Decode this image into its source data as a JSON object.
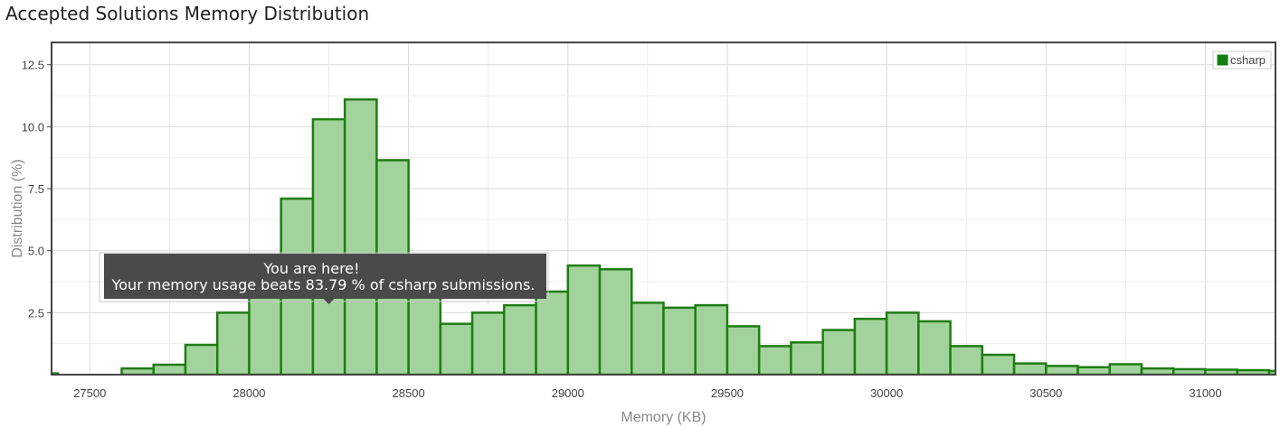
{
  "header": {
    "title": "Accepted Solutions Memory Distribution"
  },
  "colors": {
    "bar_fill": "#a3d39c",
    "bar_stroke": "#1e7d12",
    "legend_swatch": "#137d13",
    "tooltip_bg": "#4a4a4a"
  },
  "chart_data": {
    "type": "bar",
    "title": "Accepted Solutions Memory Distribution",
    "xlabel": "Memory (KB)",
    "ylabel": "Distribution (%)",
    "xlim": [
      27380,
      31220
    ],
    "ylim": [
      0,
      13.4
    ],
    "grid": true,
    "legend_position": "top-right",
    "x_ticks": [
      "27500",
      "28000",
      "28500",
      "29000",
      "29500",
      "30000",
      "30500",
      "31000"
    ],
    "y_ticks": [
      "2.5",
      "5.0",
      "7.5",
      "10.0",
      "12.5"
    ],
    "bin_width": 100,
    "series": [
      {
        "name": "csharp",
        "x": [
          27350,
          27450,
          27550,
          27650,
          27750,
          27850,
          27950,
          28050,
          28150,
          28250,
          28350,
          28450,
          28550,
          28650,
          28750,
          28850,
          28950,
          29050,
          29150,
          29250,
          29350,
          29450,
          29550,
          29650,
          29750,
          29850,
          29950,
          30050,
          30150,
          30250,
          30350,
          30450,
          30550,
          30650,
          30750,
          30850,
          30950,
          31050,
          31150,
          31250
        ],
        "values": [
          0.05,
          0,
          0,
          0.25,
          0.4,
          1.2,
          2.5,
          4.7,
          7.1,
          10.3,
          11.1,
          8.65,
          3.2,
          2.05,
          2.5,
          2.8,
          3.35,
          4.4,
          4.25,
          2.9,
          2.7,
          2.8,
          1.95,
          1.15,
          1.3,
          1.8,
          2.25,
          2.5,
          2.15,
          1.15,
          0.8,
          0.45,
          0.35,
          0.3,
          0.42,
          0.25,
          0.22,
          0.2,
          0.18,
          0.15
        ]
      }
    ]
  },
  "tooltip": {
    "line1": "You are here!",
    "line2": "Your memory usage beats 83.79 % of csharp submissions.",
    "x": 28250
  }
}
